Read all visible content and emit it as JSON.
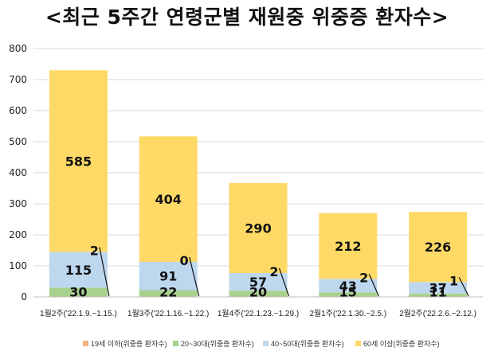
{
  "title": "<최근 5주간 연령군별 재원중 위중증 환자수>",
  "chart_data": {
    "type": "bar",
    "stacked": true,
    "categories": [
      "1월2주('22.1.9.~1.15.)",
      "1월3주('22.1.16.~1.22.)",
      "1월4주('22.1.23.~1.29.)",
      "2월1주('22.1.30.~2.5.)",
      "2월2주('22.2.6.~2.12.)"
    ],
    "series": [
      {
        "name": "19세 이하(위중증 환자수)",
        "values": [
          2,
          0,
          2,
          2,
          1
        ],
        "color": "#f4b183"
      },
      {
        "name": "20~30대(위중증 환자수)",
        "values": [
          30,
          22,
          20,
          15,
          11
        ],
        "color": "#a9d18e"
      },
      {
        "name": "40~50대(위중증 환자수)",
        "values": [
          115,
          91,
          57,
          43,
          37
        ],
        "color": "#bdd7ee"
      },
      {
        "name": "60세 이상(위중증 환자수)",
        "values": [
          585,
          404,
          290,
          212,
          226
        ],
        "color": "#ffd966"
      }
    ],
    "yticks": [
      0,
      100,
      200,
      300,
      400,
      500,
      600,
      700,
      800
    ],
    "ylim": [
      0,
      800
    ],
    "grid": true,
    "legend": "bottom"
  }
}
